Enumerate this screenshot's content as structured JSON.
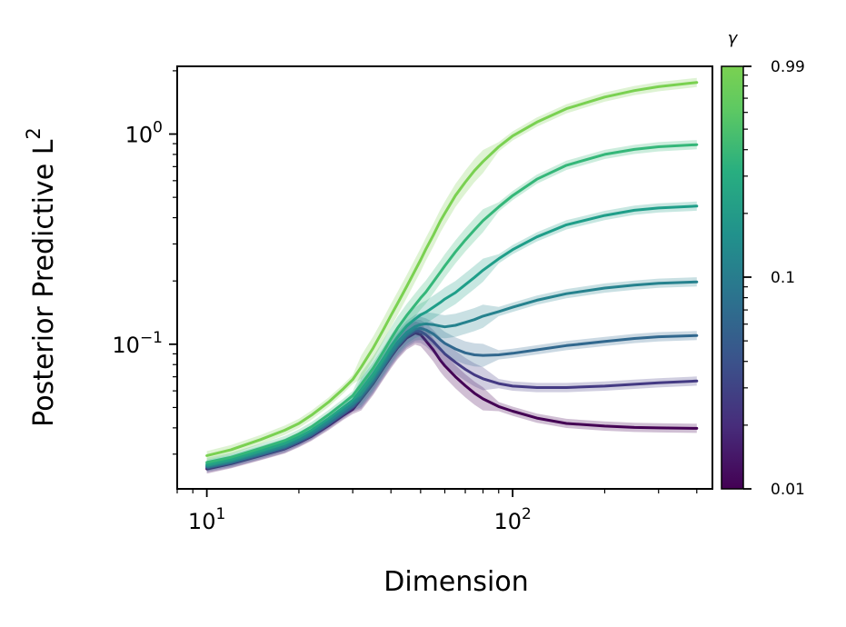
{
  "chart_data": {
    "type": "line",
    "title": "",
    "xlabel": "Dimension",
    "ylabel": "Posterior Predictive L",
    "ylabel_sup": "2",
    "xscale": "log",
    "yscale": "log",
    "xlim": [
      8,
      450
    ],
    "ylim": [
      0.0205,
      2.1
    ],
    "xticks": [
      {
        "base": "10",
        "exp": "1"
      },
      {
        "base": "10",
        "exp": "2"
      }
    ],
    "yticks": [
      {
        "base": "10",
        "exp": "0"
      },
      {
        "base": "10",
        "exp": "−1"
      }
    ],
    "grid": false,
    "x": [
      10,
      12,
      15,
      18,
      20,
      22,
      25,
      28,
      30,
      32,
      35,
      38,
      40,
      42,
      45,
      48,
      50,
      52,
      55,
      58,
      60,
      65,
      70,
      75,
      80,
      90,
      100,
      120,
      150,
      200,
      250,
      300,
      400
    ],
    "series": [
      {
        "gamma": 0.01,
        "color": "#440154",
        "values": [
          0.0255,
          0.027,
          0.0295,
          0.0318,
          0.034,
          0.0365,
          0.041,
          0.046,
          0.049,
          0.055,
          0.065,
          0.078,
          0.087,
          0.096,
          0.107,
          0.113,
          0.111,
          0.104,
          0.094,
          0.084,
          0.079,
          0.07,
          0.0635,
          0.0585,
          0.055,
          0.0505,
          0.048,
          0.0445,
          0.042,
          0.0408,
          0.0402,
          0.04,
          0.0398
        ]
      },
      {
        "gamma": 0.02,
        "color": "#443a83",
        "values": [
          0.0258,
          0.0272,
          0.0297,
          0.032,
          0.0343,
          0.0368,
          0.0415,
          0.0465,
          0.05,
          0.056,
          0.066,
          0.079,
          0.0885,
          0.0975,
          0.109,
          0.1155,
          0.115,
          0.111,
          0.103,
          0.095,
          0.09,
          0.082,
          0.076,
          0.0715,
          0.0685,
          0.065,
          0.0632,
          0.0622,
          0.0622,
          0.0632,
          0.0645,
          0.0655,
          0.0668
        ]
      },
      {
        "gamma": 0.05,
        "color": "#31688e",
        "values": [
          0.0261,
          0.0275,
          0.03,
          0.0324,
          0.0347,
          0.0372,
          0.042,
          0.0472,
          0.0508,
          0.057,
          0.0672,
          0.0805,
          0.09,
          0.0995,
          0.111,
          0.118,
          0.119,
          0.117,
          0.112,
          0.105,
          0.101,
          0.095,
          0.091,
          0.089,
          0.0885,
          0.089,
          0.0905,
          0.094,
          0.0985,
          0.103,
          0.1065,
          0.1085,
          0.11
        ]
      },
      {
        "gamma": 0.1,
        "color": "#26828e",
        "values": [
          0.0264,
          0.0279,
          0.0305,
          0.033,
          0.0353,
          0.038,
          0.043,
          0.0485,
          0.0522,
          0.0585,
          0.069,
          0.0825,
          0.0925,
          0.102,
          0.114,
          0.1215,
          0.124,
          0.125,
          0.124,
          0.122,
          0.121,
          0.123,
          0.127,
          0.131,
          0.136,
          0.143,
          0.15,
          0.162,
          0.174,
          0.185,
          0.191,
          0.195,
          0.198
        ]
      },
      {
        "gamma": 0.25,
        "color": "#1f9e89",
        "values": [
          0.0268,
          0.0284,
          0.0312,
          0.0338,
          0.0362,
          0.039,
          0.0443,
          0.0502,
          0.0542,
          0.061,
          0.0722,
          0.0865,
          0.0975,
          0.108,
          0.122,
          0.132,
          0.138,
          0.142,
          0.15,
          0.158,
          0.164,
          0.176,
          0.192,
          0.208,
          0.225,
          0.255,
          0.282,
          0.324,
          0.37,
          0.41,
          0.434,
          0.445,
          0.454
        ]
      },
      {
        "gamma": 0.5,
        "color": "#35b779",
        "values": [
          0.0274,
          0.029,
          0.032,
          0.0348,
          0.0374,
          0.0405,
          0.0462,
          0.0525,
          0.057,
          0.0645,
          0.077,
          0.0935,
          0.106,
          0.119,
          0.137,
          0.154,
          0.166,
          0.177,
          0.198,
          0.22,
          0.236,
          0.275,
          0.313,
          0.35,
          0.387,
          0.45,
          0.51,
          0.61,
          0.71,
          0.8,
          0.845,
          0.87,
          0.89
        ]
      },
      {
        "gamma": 0.99,
        "color": "#7ad151",
        "values": [
          0.0295,
          0.0315,
          0.0352,
          0.039,
          0.042,
          0.046,
          0.053,
          0.0615,
          0.068,
          0.078,
          0.096,
          0.119,
          0.137,
          0.156,
          0.188,
          0.225,
          0.252,
          0.283,
          0.33,
          0.385,
          0.42,
          0.51,
          0.59,
          0.67,
          0.74,
          0.87,
          0.98,
          1.14,
          1.32,
          1.5,
          1.61,
          1.68,
          1.76
        ]
      }
    ],
    "colorbar": {
      "title": "γ",
      "scale": "log",
      "range": [
        0.01,
        0.99
      ],
      "ticks": [
        "0.01",
        "0.1",
        "0.99"
      ],
      "colormap": "viridis"
    }
  }
}
